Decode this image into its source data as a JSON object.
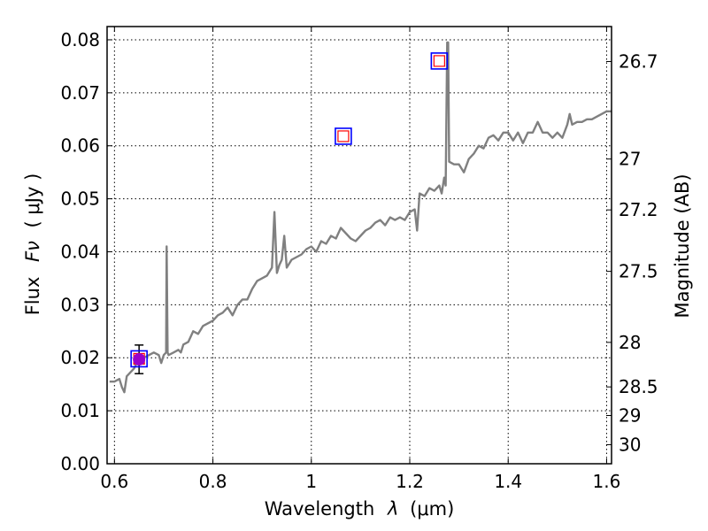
{
  "chart_data": {
    "type": "line",
    "xlabel": "Wavelength",
    "xlabel_symbol": "λ",
    "xlabel_unit": "(μm)",
    "ylabel": "Flux",
    "ylabel_symbol": "Fν",
    "ylabel_unit": "( μJy )",
    "ylabel_right": "Magnitude (AB)",
    "xlim": [
      0.585,
      1.61
    ],
    "ylim": [
      0.0,
      0.0825
    ],
    "x_ticks": [
      0.6,
      0.8,
      1.0,
      1.2,
      1.4,
      1.6
    ],
    "x_tick_labels": [
      "0.6",
      "0.8",
      "1",
      "1.2",
      "1.4",
      "1.6"
    ],
    "y_ticks": [
      0.0,
      0.01,
      0.02,
      0.03,
      0.04,
      0.05,
      0.06,
      0.07,
      0.08
    ],
    "y_tick_labels": [
      "0.00",
      "0.01",
      "0.02",
      "0.03",
      "0.04",
      "0.05",
      "0.06",
      "0.07",
      "0.08"
    ],
    "right_ticks": [
      {
        "label": "26.7",
        "flux": 0.0759
      },
      {
        "label": "27",
        "flux": 0.0575
      },
      {
        "label": "27.2",
        "flux": 0.0479
      },
      {
        "label": "27.5",
        "flux": 0.0363
      },
      {
        "label": "28",
        "flux": 0.0229
      },
      {
        "label": "28.5",
        "flux": 0.0145
      },
      {
        "label": "29",
        "flux": 0.0091
      },
      {
        "label": "30",
        "flux": 0.0036
      }
    ],
    "grid": true,
    "grid_style": "dotted",
    "colors": {
      "spectrum": "#808080",
      "box_outer": "#0000ff",
      "box_inner": "#ff0000",
      "photometry_point": "#9900cc",
      "error_bar": "#000000"
    },
    "series": [
      {
        "style": "spectrum",
        "x": [
          0.59,
          0.6,
          0.61,
          0.615,
          0.62,
          0.625,
          0.63,
          0.64,
          0.645,
          0.65,
          0.66,
          0.67,
          0.68,
          0.69,
          0.695,
          0.7,
          0.705,
          0.706,
          0.708,
          0.71,
          0.72,
          0.73,
          0.735,
          0.74,
          0.75,
          0.76,
          0.77,
          0.78,
          0.79,
          0.8,
          0.81,
          0.82,
          0.83,
          0.84,
          0.85,
          0.86,
          0.87,
          0.88,
          0.89,
          0.9,
          0.91,
          0.92,
          0.925,
          0.93,
          0.935,
          0.94,
          0.945,
          0.95,
          0.96,
          0.97,
          0.98,
          0.99,
          1.0,
          1.01,
          1.02,
          1.03,
          1.04,
          1.05,
          1.06,
          1.07,
          1.08,
          1.09,
          1.1,
          1.11,
          1.12,
          1.13,
          1.14,
          1.15,
          1.16,
          1.17,
          1.18,
          1.19,
          1.2,
          1.21,
          1.215,
          1.22,
          1.23,
          1.24,
          1.25,
          1.26,
          1.265,
          1.27,
          1.273,
          1.276,
          1.278,
          1.28,
          1.29,
          1.3,
          1.31,
          1.32,
          1.33,
          1.34,
          1.35,
          1.36,
          1.37,
          1.38,
          1.39,
          1.4,
          1.41,
          1.42,
          1.43,
          1.44,
          1.45,
          1.46,
          1.47,
          1.48,
          1.49,
          1.5,
          1.51,
          1.52,
          1.525,
          1.53,
          1.54,
          1.55,
          1.56,
          1.57,
          1.58,
          1.59,
          1.6,
          1.61
        ],
        "values": [
          0.0155,
          0.0155,
          0.016,
          0.0145,
          0.0135,
          0.0165,
          0.017,
          0.018,
          0.019,
          0.019,
          0.02,
          0.0205,
          0.021,
          0.0205,
          0.019,
          0.0205,
          0.021,
          0.041,
          0.021,
          0.0205,
          0.021,
          0.0215,
          0.021,
          0.0225,
          0.023,
          0.025,
          0.0245,
          0.026,
          0.0265,
          0.027,
          0.028,
          0.0285,
          0.0295,
          0.028,
          0.03,
          0.031,
          0.031,
          0.033,
          0.0345,
          0.035,
          0.0355,
          0.037,
          0.0475,
          0.036,
          0.0375,
          0.0385,
          0.043,
          0.037,
          0.0385,
          0.039,
          0.0395,
          0.0405,
          0.041,
          0.04,
          0.042,
          0.0415,
          0.043,
          0.0425,
          0.0445,
          0.0435,
          0.0425,
          0.042,
          0.043,
          0.044,
          0.0445,
          0.0455,
          0.046,
          0.045,
          0.0465,
          0.046,
          0.0465,
          0.046,
          0.0475,
          0.048,
          0.044,
          0.051,
          0.0505,
          0.052,
          0.0515,
          0.0525,
          0.051,
          0.054,
          0.0525,
          0.0795,
          0.0795,
          0.057,
          0.0565,
          0.0565,
          0.055,
          0.0575,
          0.0585,
          0.06,
          0.0595,
          0.0615,
          0.062,
          0.061,
          0.0625,
          0.0625,
          0.061,
          0.0625,
          0.0605,
          0.0625,
          0.0625,
          0.0645,
          0.0625,
          0.0625,
          0.0615,
          0.0625,
          0.0615,
          0.064,
          0.066,
          0.064,
          0.0645,
          0.0645,
          0.065,
          0.065,
          0.0655,
          0.066,
          0.0665,
          0.0665
        ]
      }
    ],
    "observed_photometry": [
      {
        "x": 0.65,
        "y": 0.0197,
        "err": 0.0027
      }
    ],
    "model_photometry": [
      {
        "x": 0.65,
        "y": 0.0198
      },
      {
        "x": 1.065,
        "y": 0.0618
      },
      {
        "x": 1.26,
        "y": 0.076
      }
    ]
  }
}
